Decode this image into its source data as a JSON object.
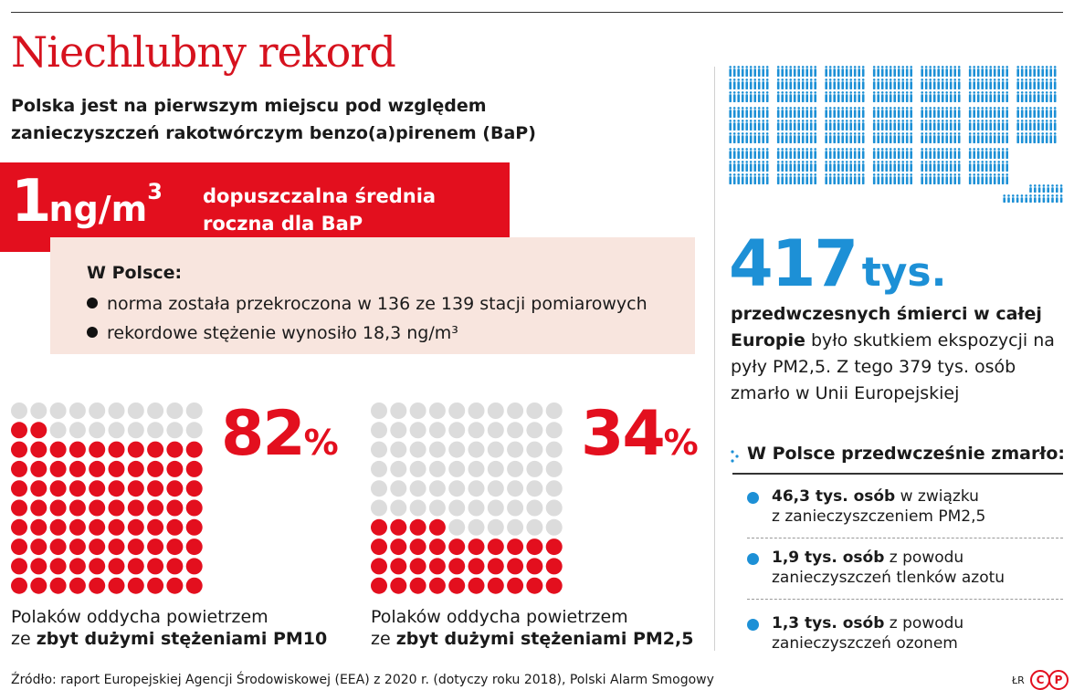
{
  "header": {
    "title": "Niechlubny rekord",
    "subtitle": "Polska jest na pierwszym miejscu pod względem zanieczyszczeń rakotwórczym benzo(a)pirenem (BaP)"
  },
  "norm": {
    "number": "1",
    "unit": "ng/m",
    "unit_sup": "3",
    "label": "dopuszczalna średnia roczna dla BaP"
  },
  "poland_box": {
    "heading": "W Polsce:",
    "items": [
      "norma została przekroczona w 136 ze 139 stacji pomiarowych",
      "rekordowe stężenie wynosiło 18,3 ng/m³"
    ]
  },
  "pm10": {
    "percent": "82",
    "percent_sign": "%",
    "value": 82,
    "caption_line1": "Polaków oddycha powietrzem",
    "caption_prefix": "ze ",
    "caption_bold": "zbyt dużymi stężeniami PM10"
  },
  "pm25": {
    "percent": "34",
    "percent_sign": "%",
    "value": 34,
    "caption_line1": "Polaków oddycha powietrzem",
    "caption_prefix": "ze ",
    "caption_bold": "zbyt dużymi stężeniami PM2,5"
  },
  "europe": {
    "number": "417",
    "unit": "tys.",
    "desc_bold_1": "przedwczesnych śmierci w całej",
    "desc_bold_2": "Europie",
    "desc_rest": " było skutkiem ekspozycji na pyły PM2,5. Z tego 379 tys. osób zmarło w Unii Europejskiej"
  },
  "poland_deaths": {
    "heading": "W Polsce przedwcześnie zmarło:",
    "items": [
      {
        "bold": "46,3 tys. osób",
        "rest1": " w związku",
        "line2": "z zanieczyszczeniem PM2,5"
      },
      {
        "bold": "1,9 tys. osób",
        "rest1": " z powodu",
        "line2": "zanieczyszczeń tlenków azotu"
      },
      {
        "bold": "1,3 tys. osób",
        "rest1": " z powodu",
        "line2": "zanieczyszczeń ozonem"
      }
    ]
  },
  "footer": {
    "source": "Źródło: raport Europejskiej Agencji Środowiskowej (EEA) z 2020 r. (dotyczy roku 2018), Polski Alarm Smogowy",
    "signature": "ŁR",
    "logo_c": "C",
    "logo_p": "P"
  },
  "colors": {
    "red": "#e30f1e",
    "dark_red": "#8a0c14",
    "blue": "#1d90d6",
    "grey_dot": "#dcdcdc",
    "pink": "#f8e5de"
  }
}
